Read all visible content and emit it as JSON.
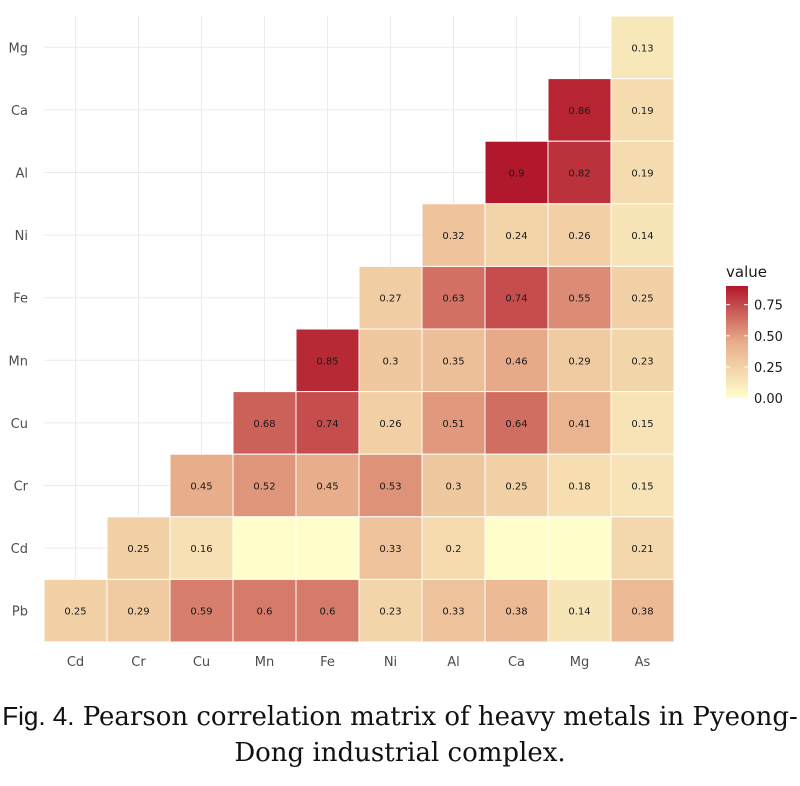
{
  "chart_data": {
    "type": "heatmap",
    "x_categories": [
      "Cd",
      "Cr",
      "Cu",
      "Mn",
      "Fe",
      "Ni",
      "Al",
      "Ca",
      "Mg",
      "As"
    ],
    "y_categories": [
      "Pb",
      "Cd",
      "Cr",
      "Cu",
      "Mn",
      "Fe",
      "Ni",
      "Al",
      "Ca",
      "Mg"
    ],
    "cells": [
      {
        "x": "As",
        "y": "Mg",
        "value": 0.13,
        "label": "0.13"
      },
      {
        "x": "Mg",
        "y": "Ca",
        "value": 0.86,
        "label": "0.86"
      },
      {
        "x": "As",
        "y": "Ca",
        "value": 0.19,
        "label": "0.19"
      },
      {
        "x": "Ca",
        "y": "Al",
        "value": 0.9,
        "label": "0.9"
      },
      {
        "x": "Mg",
        "y": "Al",
        "value": 0.82,
        "label": "0.82"
      },
      {
        "x": "As",
        "y": "Al",
        "value": 0.19,
        "label": "0.19"
      },
      {
        "x": "Al",
        "y": "Ni",
        "value": 0.32,
        "label": "0.32"
      },
      {
        "x": "Ca",
        "y": "Ni",
        "value": 0.24,
        "label": "0.24"
      },
      {
        "x": "Mg",
        "y": "Ni",
        "value": 0.26,
        "label": "0.26"
      },
      {
        "x": "As",
        "y": "Ni",
        "value": 0.14,
        "label": "0.14"
      },
      {
        "x": "Ni",
        "y": "Fe",
        "value": 0.27,
        "label": "0.27"
      },
      {
        "x": "Al",
        "y": "Fe",
        "value": 0.63,
        "label": "0.63"
      },
      {
        "x": "Ca",
        "y": "Fe",
        "value": 0.74,
        "label": "0.74"
      },
      {
        "x": "Mg",
        "y": "Fe",
        "value": 0.55,
        "label": "0.55"
      },
      {
        "x": "As",
        "y": "Fe",
        "value": 0.25,
        "label": "0.25"
      },
      {
        "x": "Fe",
        "y": "Mn",
        "value": 0.85,
        "label": "0.85"
      },
      {
        "x": "Ni",
        "y": "Mn",
        "value": 0.3,
        "label": "0.3"
      },
      {
        "x": "Al",
        "y": "Mn",
        "value": 0.35,
        "label": "0.35"
      },
      {
        "x": "Ca",
        "y": "Mn",
        "value": 0.46,
        "label": "0.46"
      },
      {
        "x": "Mg",
        "y": "Mn",
        "value": 0.29,
        "label": "0.29"
      },
      {
        "x": "As",
        "y": "Mn",
        "value": 0.23,
        "label": "0.23"
      },
      {
        "x": "Mn",
        "y": "Cu",
        "value": 0.68,
        "label": "0.68"
      },
      {
        "x": "Fe",
        "y": "Cu",
        "value": 0.74,
        "label": "0.74"
      },
      {
        "x": "Ni",
        "y": "Cu",
        "value": 0.26,
        "label": "0.26"
      },
      {
        "x": "Al",
        "y": "Cu",
        "value": 0.51,
        "label": "0.51"
      },
      {
        "x": "Ca",
        "y": "Cu",
        "value": 0.64,
        "label": "0.64"
      },
      {
        "x": "Mg",
        "y": "Cu",
        "value": 0.41,
        "label": "0.41"
      },
      {
        "x": "As",
        "y": "Cu",
        "value": 0.15,
        "label": "0.15"
      },
      {
        "x": "Cu",
        "y": "Cr",
        "value": 0.45,
        "label": "0.45"
      },
      {
        "x": "Mn",
        "y": "Cr",
        "value": 0.52,
        "label": "0.52"
      },
      {
        "x": "Fe",
        "y": "Cr",
        "value": 0.45,
        "label": "0.45"
      },
      {
        "x": "Ni",
        "y": "Cr",
        "value": 0.53,
        "label": "0.53"
      },
      {
        "x": "Al",
        "y": "Cr",
        "value": 0.3,
        "label": "0.3"
      },
      {
        "x": "Ca",
        "y": "Cr",
        "value": 0.25,
        "label": "0.25"
      },
      {
        "x": "Mg",
        "y": "Cr",
        "value": 0.18,
        "label": "0.18"
      },
      {
        "x": "As",
        "y": "Cr",
        "value": 0.15,
        "label": "0.15"
      },
      {
        "x": "Cr",
        "y": "Cd",
        "value": 0.25,
        "label": "0.25"
      },
      {
        "x": "Cu",
        "y": "Cd",
        "value": 0.16,
        "label": "0.16"
      },
      {
        "x": "Mn",
        "y": "Cd",
        "value": 0.0,
        "label": ""
      },
      {
        "x": "Fe",
        "y": "Cd",
        "value": 0.0,
        "label": ""
      },
      {
        "x": "Ni",
        "y": "Cd",
        "value": 0.33,
        "label": "0.33"
      },
      {
        "x": "Al",
        "y": "Cd",
        "value": 0.2,
        "label": "0.2"
      },
      {
        "x": "Ca",
        "y": "Cd",
        "value": 0.0,
        "label": ""
      },
      {
        "x": "Mg",
        "y": "Cd",
        "value": 0.0,
        "label": ""
      },
      {
        "x": "As",
        "y": "Cd",
        "value": 0.21,
        "label": "0.21"
      },
      {
        "x": "Cd",
        "y": "Pb",
        "value": 0.25,
        "label": "0.25"
      },
      {
        "x": "Cr",
        "y": "Pb",
        "value": 0.29,
        "label": "0.29"
      },
      {
        "x": "Cu",
        "y": "Pb",
        "value": 0.59,
        "label": "0.59"
      },
      {
        "x": "Mn",
        "y": "Pb",
        "value": 0.6,
        "label": "0.6"
      },
      {
        "x": "Fe",
        "y": "Pb",
        "value": 0.6,
        "label": "0.6"
      },
      {
        "x": "Ni",
        "y": "Pb",
        "value": 0.23,
        "label": "0.23"
      },
      {
        "x": "Al",
        "y": "Pb",
        "value": 0.33,
        "label": "0.33"
      },
      {
        "x": "Ca",
        "y": "Pb",
        "value": 0.38,
        "label": "0.38"
      },
      {
        "x": "Mg",
        "y": "Pb",
        "value": 0.14,
        "label": "0.14"
      },
      {
        "x": "As",
        "y": "Pb",
        "value": 0.38,
        "label": "0.38"
      }
    ],
    "legend": {
      "title": "value",
      "ticks": [
        "0.75",
        "0.50",
        "0.25",
        "0.00"
      ],
      "range": [
        0,
        0.9
      ],
      "placement": "right"
    },
    "color_scale": {
      "low": "#fffecb",
      "mid": "#e8ad8a",
      "high": "#b2182b"
    },
    "grid": true,
    "panel_background": "#ffffff",
    "grid_color": "#ebebeb"
  },
  "caption": {
    "label": "Fig. 4.",
    "text": "Pearson correlation matrix of heavy metals in Pyeong-Dong industrial complex."
  }
}
